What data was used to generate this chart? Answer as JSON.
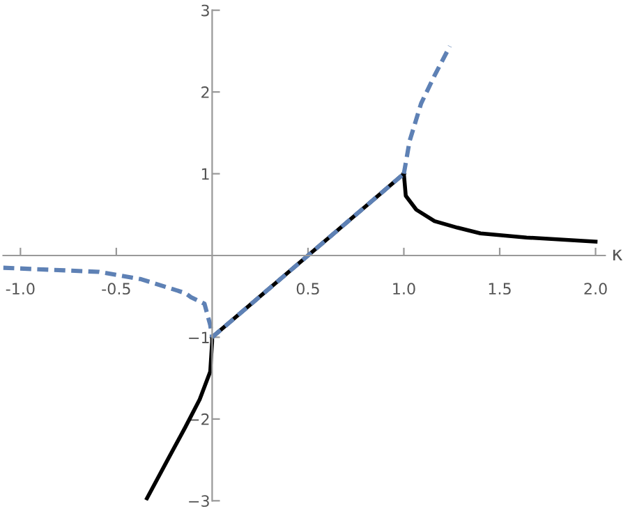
{
  "chart_data": {
    "type": "line",
    "xlabel": "κ",
    "xlim": [
      -1.09,
      2.05
    ],
    "ylim": [
      -3,
      3
    ],
    "xticks": [
      {
        "value": -1,
        "label": "-1.0"
      },
      {
        "value": -0.5,
        "label": "-0.5"
      },
      0.5,
      {
        "value": 1,
        "label": "1.0"
      },
      1.5,
      {
        "value": 2,
        "label": "2.0"
      }
    ],
    "yticks": [
      {
        "value": -3,
        "label": "−3"
      },
      {
        "value": -2,
        "label": "−2"
      },
      {
        "value": -1,
        "label": "−1"
      },
      1,
      2,
      3
    ],
    "grid": false,
    "legend": false,
    "series": [
      {
        "color": "#000000",
        "line_style": "solid",
        "x": [
          0,
          1
        ],
        "values": [
          -1,
          1
        ]
      },
      {
        "color": "#000000",
        "line_style": "solid",
        "x": [
          1,
          1.01,
          1.065,
          1.16,
          1.28,
          1.4,
          1.64,
          2.0
        ],
        "values": [
          1,
          0.73,
          0.56,
          0.42,
          0.34,
          0.27,
          0.22,
          0.17
        ]
      },
      {
        "color": "#000000",
        "line_style": "solid",
        "x": [
          0,
          0,
          -0.01,
          -0.065,
          -0.14,
          -0.23,
          -0.34
        ],
        "values": [
          -1,
          -1.05,
          -1.42,
          -1.76,
          -2.1,
          -2.49,
          -2.97
        ]
      },
      {
        "color": "#5e81b5",
        "line_style": "dashed",
        "x": [
          0,
          1
        ],
        "values": [
          -1,
          1
        ]
      },
      {
        "color": "#5e81b5",
        "line_style": "dashed",
        "x": [
          1,
          1.03,
          1.09,
          1.16,
          1.24
        ],
        "values": [
          1,
          1.4,
          1.86,
          2.2,
          2.56
        ]
      },
      {
        "color": "#5e81b5",
        "line_style": "dashed",
        "x": [
          -1.09,
          -0.59,
          -0.37,
          -0.14,
          -0.11,
          -0.04,
          -0.01,
          0
        ],
        "values": [
          -0.15,
          -0.2,
          -0.29,
          -0.46,
          -0.51,
          -0.59,
          -0.85,
          -1
        ]
      }
    ]
  }
}
